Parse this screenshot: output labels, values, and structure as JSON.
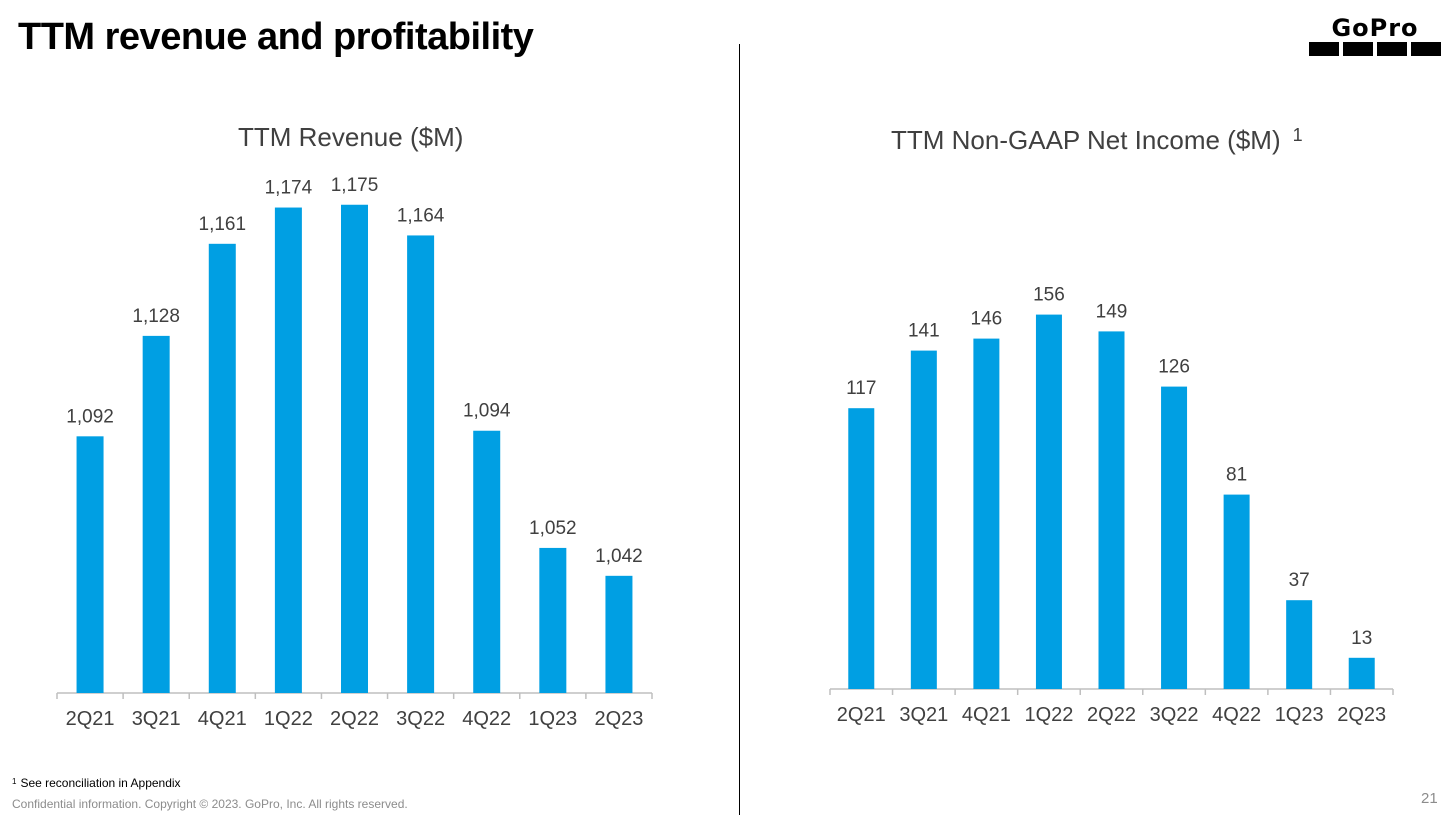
{
  "slide": {
    "title": "TTM revenue and profitability",
    "footnote_marker": "1",
    "footnote": "See reconciliation in Appendix",
    "copyright": "Confidential information. Copyright © 2023. GoPro, Inc. All rights reserved.",
    "page_number": "21",
    "logo_text": "GoPro",
    "accent_color": "#009FE3"
  },
  "chart_data": [
    {
      "type": "bar",
      "title": "TTM Revenue ($M)",
      "categories": [
        "2Q21",
        "3Q21",
        "4Q21",
        "1Q22",
        "2Q22",
        "3Q22",
        "4Q22",
        "1Q23",
        "2Q23"
      ],
      "values": [
        1092,
        1128,
        1161,
        1174,
        1175,
        1164,
        1094,
        1052,
        1042
      ],
      "data_labels": [
        "1,092",
        "1,128",
        "1,161",
        "1,174",
        "1,175",
        "1,164",
        "1,094",
        "1,052",
        "1,042"
      ],
      "color": "#009FE3",
      "grid": false,
      "legend": "none"
    },
    {
      "type": "bar",
      "title": "TTM Non-GAAP Net Income ($M)",
      "title_footnote": "1",
      "categories": [
        "2Q21",
        "3Q21",
        "4Q21",
        "1Q22",
        "2Q22",
        "3Q22",
        "4Q22",
        "1Q23",
        "2Q23"
      ],
      "values": [
        117,
        141,
        146,
        156,
        149,
        126,
        81,
        37,
        13
      ],
      "data_labels": [
        "117",
        "141",
        "146",
        "156",
        "149",
        "126",
        "81",
        "37",
        "13"
      ],
      "color": "#009FE3",
      "grid": false,
      "legend": "none"
    }
  ]
}
